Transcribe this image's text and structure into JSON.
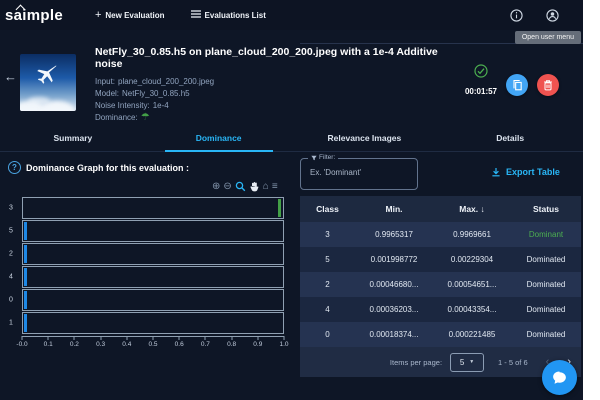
{
  "colors": {
    "accent": "#29b6f6",
    "green": "#43a047",
    "red": "#ef5350",
    "copy_blue": "#42a5f5",
    "chat_blue": "#2196f3",
    "bar_blue": "#1e88e5"
  },
  "icons": {
    "plus": "+",
    "back_arrow": "←",
    "umbrella": "☂",
    "caret_down": "▼",
    "chevron_left": "‹",
    "chevron_right": "›",
    "help": "?",
    "zoom_in": "⊕",
    "zoom_out": "⊖",
    "home": "⌂",
    "menu": "≡"
  },
  "topbar": {
    "logo": "saimple",
    "new_evaluation": "New Evaluation",
    "evaluations_list": "Evaluations List",
    "tooltip": "Open user menu"
  },
  "evaluation": {
    "title": "NetFly_30_0.85.h5 on plane_cloud_200_200.jpeg with a 1e-4 Additive noise",
    "details": [
      {
        "label": "Input:",
        "value": "plane_cloud_200_200.jpeg"
      },
      {
        "label": "Model:",
        "value": "NetFly_30_0.85.h5"
      },
      {
        "label": "Noise Intensity:",
        "value": "1e-4"
      },
      {
        "label": "Dominance:",
        "value": "",
        "icon": "umbrella-icon"
      }
    ],
    "status": "success",
    "timer": "00:01:57"
  },
  "tabs": [
    {
      "label": "Summary",
      "active": false
    },
    {
      "label": "Dominance",
      "active": true
    },
    {
      "label": "Relevance Images",
      "active": false
    },
    {
      "label": "Details",
      "active": false
    }
  ],
  "graph": {
    "heading": "Dominance Graph for this evaluation :",
    "toolbar_icons": [
      "zoom-in-icon",
      "zoom-out-icon",
      "box-zoom-icon",
      "pan-icon",
      "home-icon",
      "menu-icon"
    ]
  },
  "chart_data": {
    "type": "bar",
    "orientation": "horizontal",
    "note": "one subplot per class; narrow interval bar from min to max dominance value; class 1 values estimated (row on page 2 of table)",
    "categories": [
      "3",
      "5",
      "2",
      "4",
      "0",
      "1"
    ],
    "series": [
      {
        "name": "min",
        "values": [
          0.9965317,
          0.001998772,
          0.0004668,
          0.00036203,
          0.00018374,
          0.0012
        ]
      },
      {
        "name": "max",
        "values": [
          0.9969661,
          0.00229304,
          0.00054651,
          0.00043354,
          0.000221485,
          0.0022
        ]
      }
    ],
    "bar_colors": [
      "#43a047",
      "#1e88e5",
      "#1e88e5",
      "#1e88e5",
      "#1e88e5",
      "#1e88e5"
    ],
    "xlim": [
      0.0,
      1.0
    ],
    "xticks": [
      "-0.0",
      "0.1",
      "0.2",
      "0.3",
      "0.4",
      "0.5",
      "0.6",
      "0.7",
      "0.8",
      "0.9",
      "1.0"
    ],
    "grid": false,
    "legend": false
  },
  "filter": {
    "label": "Filter:",
    "placeholder": "Ex. 'Dominant'"
  },
  "export": {
    "label": "Export Table"
  },
  "table": {
    "columns": [
      "Class",
      "Min.",
      "Max. ↓",
      "Status"
    ],
    "rows": [
      {
        "class": "3",
        "min": "0.9965317",
        "max": "0.9969661",
        "status": "Dominant",
        "dominant": true
      },
      {
        "class": "5",
        "min": "0.001998772",
        "max": "0.00229304",
        "status": "Dominated",
        "dominant": false
      },
      {
        "class": "2",
        "min": "0.00046680...",
        "max": "0.00054651...",
        "status": "Dominated",
        "dominant": false
      },
      {
        "class": "4",
        "min": "0.00036203...",
        "max": "0.00043354...",
        "status": "Dominated",
        "dominant": false
      },
      {
        "class": "0",
        "min": "0.00018374...",
        "max": "0.000221485",
        "status": "Dominated",
        "dominant": false
      }
    ],
    "footer": {
      "items_per_page_label": "Items per page:",
      "items_per_page": "5",
      "range": "1 - 5 of 6"
    }
  }
}
